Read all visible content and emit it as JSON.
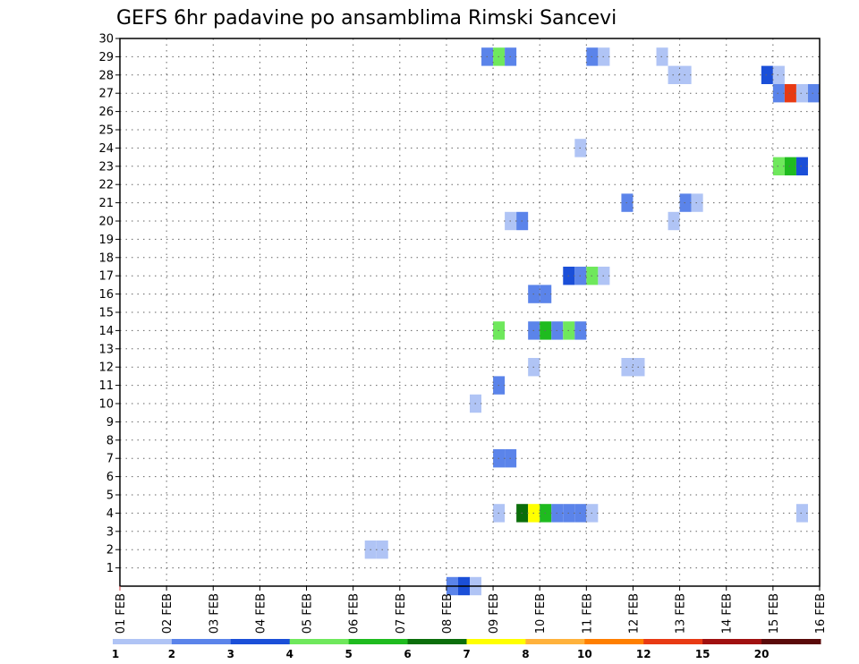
{
  "chart_data": {
    "type": "heatmap",
    "title": "GEFS 6hr padavine po ansamblima Rimski Sancevi",
    "xlabel": "",
    "ylabel": "",
    "x_ticks": [
      "01 FEB",
      "02 FEB",
      "03 FEB",
      "04 FEB",
      "05 FEB",
      "06 FEB",
      "07 FEB",
      "08 FEB",
      "09 FEB",
      "10 FEB",
      "11 FEB",
      "12 FEB",
      "13 FEB",
      "14 FEB",
      "15 FEB",
      "16 FEB"
    ],
    "xlim_days": [
      0,
      15
    ],
    "y_ticks": [
      1,
      2,
      3,
      4,
      5,
      6,
      7,
      8,
      9,
      10,
      11,
      12,
      13,
      14,
      15,
      16,
      17,
      18,
      19,
      20,
      21,
      22,
      23,
      24,
      25,
      26,
      27,
      28,
      29,
      30
    ],
    "ylim": [
      0,
      30
    ],
    "grid": true,
    "colorbar": {
      "placement": "bottom",
      "labels": [
        "1",
        "2",
        "3",
        "4",
        "5",
        "6",
        "7",
        "8",
        "10",
        "12",
        "15",
        "20"
      ],
      "colors": [
        "#b0c4f5",
        "#5b84ea",
        "#1b4fd8",
        "#6fe85c",
        "#1fbb1f",
        "#0b6e0b",
        "#ffff00",
        "#ffb23c",
        "#ff7f00",
        "#e83a14",
        "#a01010",
        "#5a0a0a"
      ]
    },
    "cells": [
      {
        "d": 7.0,
        "m": 0,
        "v": 2
      },
      {
        "d": 7.25,
        "m": 0,
        "v": 3
      },
      {
        "d": 7.5,
        "m": 0,
        "v": 1
      },
      {
        "d": 5.25,
        "m": 2,
        "v": 1
      },
      {
        "d": 5.5,
        "m": 2,
        "v": 1
      },
      {
        "d": 8.0,
        "m": 4,
        "v": 1
      },
      {
        "d": 8.5,
        "m": 4,
        "v": 6
      },
      {
        "d": 8.75,
        "m": 4,
        "v": 7
      },
      {
        "d": 9.0,
        "m": 4,
        "v": 5
      },
      {
        "d": 9.25,
        "m": 4,
        "v": 2
      },
      {
        "d": 9.5,
        "m": 4,
        "v": 2
      },
      {
        "d": 9.75,
        "m": 4,
        "v": 2
      },
      {
        "d": 10.0,
        "m": 4,
        "v": 1
      },
      {
        "d": 14.5,
        "m": 4,
        "v": 1
      },
      {
        "d": 8.0,
        "m": 7,
        "v": 2
      },
      {
        "d": 8.25,
        "m": 7,
        "v": 2
      },
      {
        "d": 7.5,
        "m": 10,
        "v": 1
      },
      {
        "d": 8.0,
        "m": 11,
        "v": 2
      },
      {
        "d": 8.75,
        "m": 12,
        "v": 1
      },
      {
        "d": 10.75,
        "m": 12,
        "v": 1
      },
      {
        "d": 11.0,
        "m": 12,
        "v": 1
      },
      {
        "d": 8.0,
        "m": 14,
        "v": 4
      },
      {
        "d": 8.75,
        "m": 14,
        "v": 2
      },
      {
        "d": 9.0,
        "m": 14,
        "v": 5
      },
      {
        "d": 9.25,
        "m": 14,
        "v": 2
      },
      {
        "d": 9.5,
        "m": 14,
        "v": 4
      },
      {
        "d": 9.75,
        "m": 14,
        "v": 2
      },
      {
        "d": 8.75,
        "m": 16,
        "v": 2
      },
      {
        "d": 9.0,
        "m": 16,
        "v": 2
      },
      {
        "d": 9.5,
        "m": 17,
        "v": 3
      },
      {
        "d": 9.75,
        "m": 17,
        "v": 2
      },
      {
        "d": 10.0,
        "m": 17,
        "v": 4
      },
      {
        "d": 10.25,
        "m": 17,
        "v": 1
      },
      {
        "d": 8.25,
        "m": 20,
        "v": 1
      },
      {
        "d": 8.5,
        "m": 20,
        "v": 2
      },
      {
        "d": 11.75,
        "m": 20,
        "v": 1
      },
      {
        "d": 10.75,
        "m": 21,
        "v": 2
      },
      {
        "d": 12.0,
        "m": 21,
        "v": 2
      },
      {
        "d": 12.25,
        "m": 21,
        "v": 1
      },
      {
        "d": 14.0,
        "m": 23,
        "v": 4
      },
      {
        "d": 14.25,
        "m": 23,
        "v": 5
      },
      {
        "d": 14.5,
        "m": 23,
        "v": 3
      },
      {
        "d": 9.75,
        "m": 24,
        "v": 1
      },
      {
        "d": 14.0,
        "m": 27,
        "v": 2
      },
      {
        "d": 14.25,
        "m": 27,
        "v": 10
      },
      {
        "d": 14.5,
        "m": 27,
        "v": 1
      },
      {
        "d": 14.75,
        "m": 27,
        "v": 2
      },
      {
        "d": 13.75,
        "m": 28,
        "v": 3
      },
      {
        "d": 14.0,
        "m": 28,
        "v": 1
      },
      {
        "d": 11.75,
        "m": 28,
        "v": 1
      },
      {
        "d": 12.0,
        "m": 28,
        "v": 1
      },
      {
        "d": 7.75,
        "m": 29,
        "v": 2
      },
      {
        "d": 8.0,
        "m": 29,
        "v": 4
      },
      {
        "d": 8.25,
        "m": 29,
        "v": 2
      },
      {
        "d": 10.0,
        "m": 29,
        "v": 2
      },
      {
        "d": 10.25,
        "m": 29,
        "v": 1
      },
      {
        "d": 11.5,
        "m": 29,
        "v": 1
      }
    ]
  }
}
